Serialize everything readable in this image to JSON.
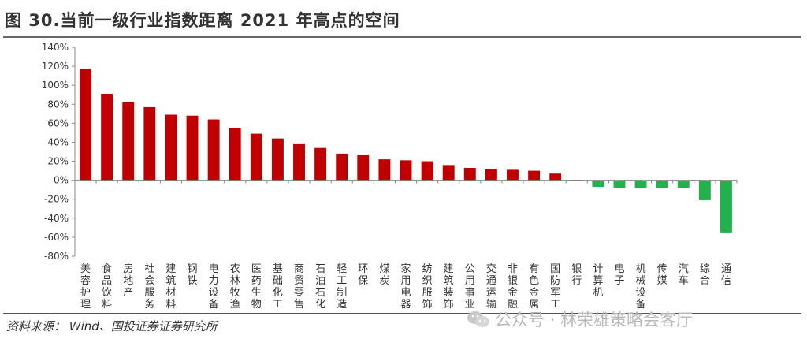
{
  "figure": {
    "title": "图 30.当前一级行业指数距离 2021 年高点的空间",
    "source": "资料来源： Wind、国投证券证券研究所",
    "watermark": "公众号 · 林荣雄策略会客厅"
  },
  "chart_data": {
    "type": "bar",
    "categories": [
      "美容护理",
      "食品饮料",
      "房地产",
      "社会服务",
      "建筑材料",
      "钢铁",
      "电力设备",
      "农林牧渔",
      "医药生物",
      "基础化工",
      "商贸零售",
      "石油石化",
      "轻工制造",
      "环保",
      "煤炭",
      "家用电器",
      "纺织服饰",
      "建筑装饰",
      "公用事业",
      "交通运输",
      "非银金融",
      "有色金属",
      "国防军工",
      "银行",
      "计算机",
      "电子",
      "机械设备",
      "传媒",
      "汽车",
      "综合",
      "通信"
    ],
    "values": [
      117,
      91,
      82,
      77,
      69,
      68,
      64,
      55,
      49,
      44,
      38,
      34,
      28,
      27,
      22,
      21,
      20,
      16,
      13,
      12,
      11,
      10,
      7,
      0.5,
      -7,
      -8,
      -8,
      -8,
      -8,
      -21,
      -55
    ],
    "ylim": [
      -80,
      140
    ],
    "ytick_step": 20,
    "yticks": [
      "-80%",
      "-60%",
      "-40%",
      "-20%",
      "0%",
      "20%",
      "40%",
      "60%",
      "80%",
      "100%",
      "120%",
      "140%"
    ],
    "colors": {
      "positive": "#c00000",
      "negative": "#22b14c"
    },
    "grid": false,
    "legend": false
  }
}
